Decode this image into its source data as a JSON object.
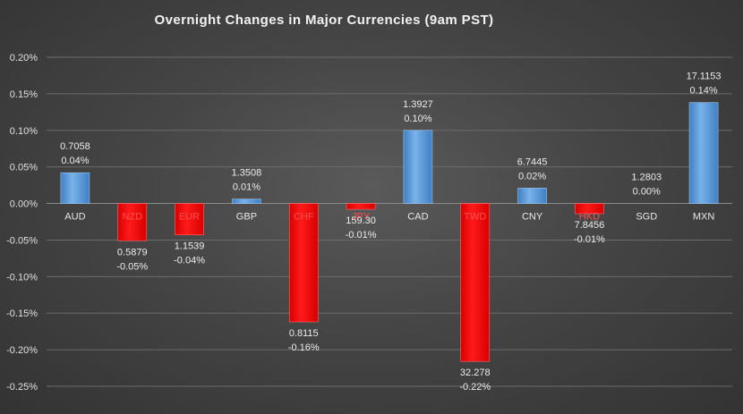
{
  "chart_data": {
    "type": "bar",
    "title": "Overnight Changes in Major Currencies (9am PST)",
    "categories": [
      "AUD",
      "NZD",
      "EUR",
      "GBP",
      "CHF",
      "JPY",
      "CAD",
      "TWD",
      "CNY",
      "HKD",
      "SGD",
      "MXN"
    ],
    "values": [
      0.04,
      -0.05,
      -0.04,
      0.01,
      -0.16,
      -0.01,
      0.1,
      -0.22,
      0.02,
      -0.01,
      0.0,
      0.14
    ],
    "bar_values": [
      0.042,
      -0.051,
      -0.043,
      0.006,
      -0.162,
      -0.008,
      0.1,
      -0.216,
      0.021,
      -0.014,
      0.0,
      0.138
    ],
    "rates": [
      "0.7058",
      "0.5879",
      "1.1539",
      "1.3508",
      "0.8115",
      "159.30",
      "1.3927",
      "32.278",
      "6.7445",
      "7.8456",
      "1.2803",
      "17.1153"
    ],
    "pct_labels": [
      "0.04%",
      "-0.05%",
      "-0.04%",
      "0.01%",
      "-0.16%",
      "-0.01%",
      "0.10%",
      "-0.22%",
      "0.02%",
      "-0.01%",
      "0.00%",
      "0.14%"
    ],
    "y_ticks": [
      "0.20%",
      "0.15%",
      "0.10%",
      "0.05%",
      "0.00%",
      "-0.05%",
      "-0.10%",
      "-0.15%",
      "-0.20%",
      "-0.25%"
    ],
    "ylim": [
      -0.25,
      0.2
    ],
    "grid": true,
    "legend": "none",
    "colors": {
      "positive": "#5b9bd5",
      "negative": "#ff0000",
      "negative_label": "#ff5050",
      "label": "#ececec"
    }
  }
}
